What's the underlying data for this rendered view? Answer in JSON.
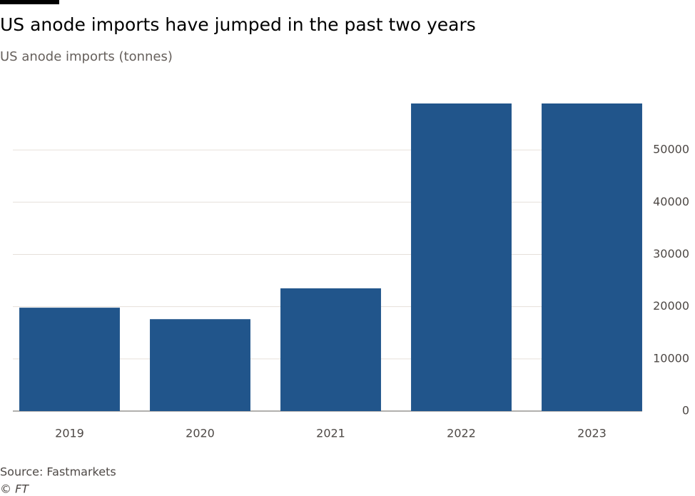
{
  "chart_data": {
    "type": "bar",
    "title": "US anode imports have jumped in the past two years",
    "subtitle": "US anode imports (tonnes)",
    "categories": [
      "2019",
      "2020",
      "2021",
      "2022",
      "2023"
    ],
    "values": [
      19800,
      17600,
      23500,
      58900,
      58900
    ],
    "color": "#21558b",
    "ylim": [
      0,
      58900
    ],
    "yticks": [
      0,
      10000,
      20000,
      30000,
      40000,
      50000
    ],
    "grid": true,
    "source": "Source: Fastmarkets",
    "credit": "© FT"
  }
}
